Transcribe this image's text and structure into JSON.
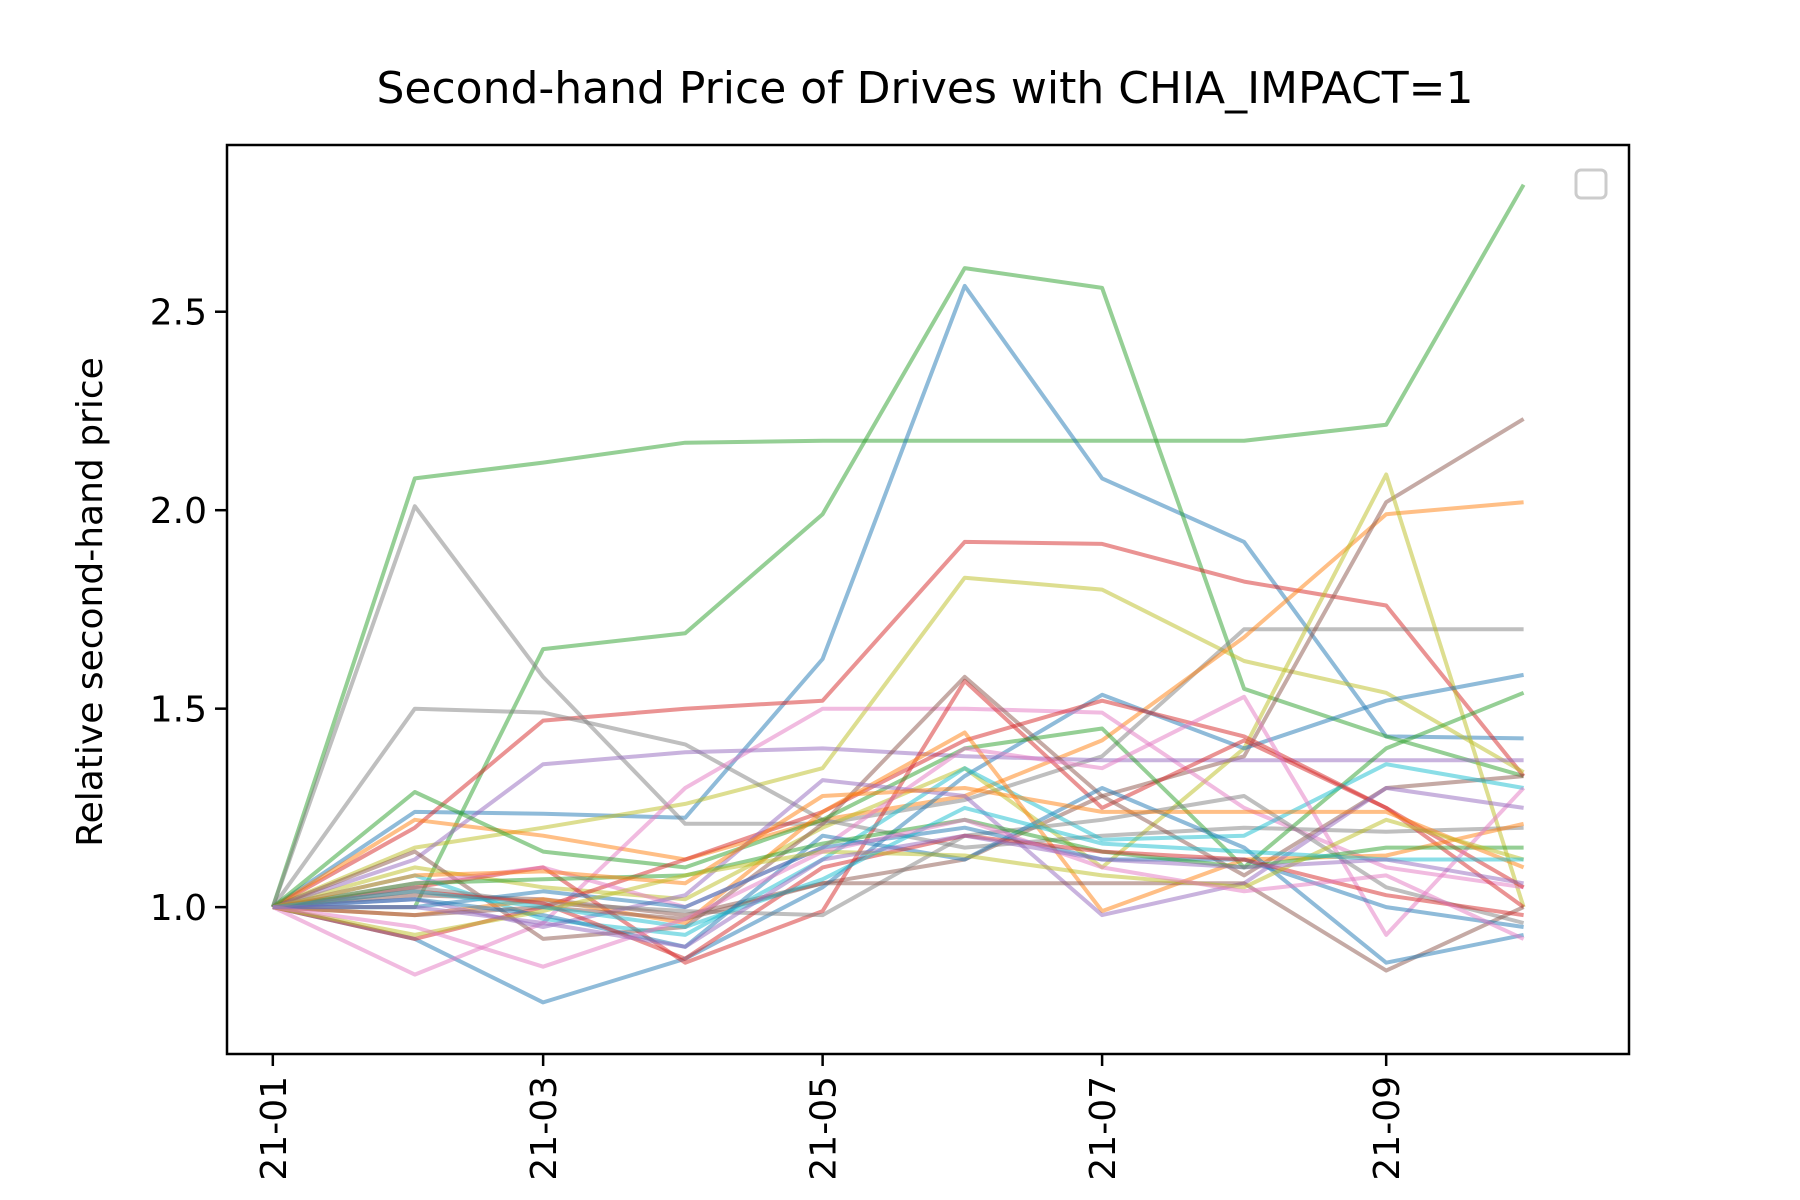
{
  "chart_data": {
    "type": "line",
    "title": "Second-hand Price of Drives with CHIA_IMPACT=1",
    "xlabel": "",
    "ylabel": "Relative second-hand price",
    "x": [
      "2021-01",
      "2021-02",
      "2021-03",
      "2021-04",
      "2021-05",
      "2021-06",
      "2021-07",
      "2021-08",
      "2021-09",
      "2021-10"
    ],
    "x_tick_labels": [
      {
        "x": "2021-01",
        "label": "21-01"
      },
      {
        "x": "2021-03",
        "label": "21-03"
      },
      {
        "x": "2021-05",
        "label": "21-05"
      },
      {
        "x": "2021-07",
        "label": "21-07"
      },
      {
        "x": "2021-09",
        "label": "21-09"
      }
    ],
    "y_ticks": [
      1.0,
      1.5,
      2.0,
      2.5
    ],
    "y_tick_labels": [
      "1.0",
      "1.5",
      "2.0",
      "2.5"
    ],
    "ylim": [
      0.63,
      2.92
    ],
    "xlim": [
      "2020-12-22",
      "2021-10-24"
    ],
    "grid": false,
    "legend": {
      "placement": "top-right",
      "entries": []
    },
    "line_opacity": 0.5,
    "series": [
      {
        "color": "#2ca02c",
        "values": [
          1.0,
          2.08,
          2.12,
          2.17,
          2.175,
          2.175,
          2.175,
          2.175,
          2.215,
          2.82
        ]
      },
      {
        "color": "#1f77b4",
        "values": [
          1.0,
          1.24,
          1.235,
          1.225,
          1.625,
          2.565,
          2.08,
          1.92,
          1.43,
          1.425
        ]
      },
      {
        "color": "#2ca02c",
        "values": [
          1.0,
          1.0,
          1.65,
          1.69,
          1.99,
          2.61,
          2.56,
          1.55,
          1.43,
          1.33
        ]
      },
      {
        "color": "#d62728",
        "values": [
          1.0,
          1.2,
          1.47,
          1.5,
          1.52,
          1.92,
          1.915,
          1.82,
          1.76,
          1.33
        ]
      },
      {
        "color": "#bcbd22",
        "values": [
          1.0,
          1.15,
          1.2,
          1.26,
          1.35,
          1.83,
          1.8,
          1.62,
          1.54,
          1.34
        ]
      },
      {
        "color": "#7f7f7f",
        "values": [
          1.0,
          2.01,
          1.58,
          1.21,
          1.21,
          1.27,
          1.38,
          1.7,
          1.7,
          1.7
        ]
      },
      {
        "color": "#ff7f0e",
        "values": [
          1.0,
          1.22,
          1.18,
          1.12,
          1.22,
          1.28,
          1.42,
          1.68,
          1.99,
          2.02
        ]
      },
      {
        "color": "#8c564b",
        "values": [
          1.0,
          1.03,
          1.02,
          0.98,
          1.06,
          1.12,
          1.28,
          1.38,
          2.02,
          2.23
        ]
      },
      {
        "color": "#bcbd22",
        "values": [
          1.0,
          1.1,
          1.05,
          1.02,
          1.2,
          1.35,
          1.1,
          1.4,
          2.09,
          1.0
        ]
      },
      {
        "color": "#7f7f7f",
        "values": [
          1.0,
          1.5,
          1.49,
          1.41,
          1.22,
          1.15,
          1.18,
          1.2,
          1.19,
          1.2
        ]
      },
      {
        "color": "#1f77b4",
        "values": [
          1.0,
          0.92,
          0.76,
          0.87,
          1.05,
          1.33,
          1.535,
          1.4,
          1.52,
          1.585
        ]
      },
      {
        "color": "#e377c2",
        "values": [
          1.0,
          0.83,
          0.96,
          1.3,
          1.5,
          1.5,
          1.49,
          1.25,
          1.1,
          1.05
        ]
      },
      {
        "color": "#9467bd",
        "values": [
          1.0,
          1.12,
          1.36,
          1.39,
          1.4,
          1.38,
          1.37,
          1.37,
          1.37,
          1.37
        ]
      },
      {
        "color": "#d62728",
        "values": [
          1.0,
          1.05,
          1.1,
          0.86,
          0.99,
          1.57,
          1.25,
          1.42,
          1.25,
          1.05
        ]
      },
      {
        "color": "#8c564b",
        "values": [
          1.0,
          1.14,
          0.92,
          0.95,
          1.21,
          1.58,
          1.28,
          1.08,
          1.3,
          1.33
        ]
      },
      {
        "color": "#2ca02c",
        "values": [
          1.0,
          1.29,
          1.14,
          1.1,
          1.22,
          1.4,
          1.45,
          1.1,
          1.4,
          1.54
        ]
      },
      {
        "color": "#17becf",
        "values": [
          1.0,
          1.08,
          0.97,
          0.93,
          1.12,
          1.35,
          1.17,
          1.18,
          1.36,
          1.3
        ]
      },
      {
        "color": "#d62728",
        "values": [
          1.0,
          0.92,
          1.0,
          1.12,
          1.24,
          1.42,
          1.52,
          1.43,
          1.25,
          1.0
        ]
      },
      {
        "color": "#ff7f0e",
        "values": [
          1.0,
          0.98,
          1.02,
          0.96,
          1.24,
          1.44,
          0.99,
          1.12,
          1.13,
          1.21
        ]
      },
      {
        "color": "#e377c2",
        "values": [
          1.0,
          1.06,
          1.1,
          1.0,
          1.15,
          1.4,
          1.35,
          1.53,
          0.93,
          1.3
        ]
      },
      {
        "color": "#9467bd",
        "values": [
          1.0,
          1.02,
          0.95,
          1.03,
          1.32,
          1.28,
          0.98,
          1.06,
          1.3,
          1.25
        ]
      },
      {
        "color": "#7f7f7f",
        "values": [
          1.0,
          1.05,
          1.01,
          0.99,
          0.98,
          1.18,
          1.22,
          1.28,
          1.05,
          0.96
        ]
      },
      {
        "color": "#8c564b",
        "values": [
          1.0,
          0.98,
          1.0,
          0.97,
          1.06,
          1.06,
          1.06,
          1.06,
          0.84,
          1.0
        ]
      },
      {
        "color": "#1f77b4",
        "values": [
          1.0,
          1.0,
          1.04,
          1.0,
          1.15,
          1.2,
          1.12,
          1.12,
          1.0,
          0.95
        ]
      },
      {
        "color": "#1f77b4",
        "values": [
          1.0,
          1.02,
          0.98,
          0.9,
          1.18,
          1.12,
          1.3,
          1.15,
          0.86,
          0.93
        ]
      },
      {
        "color": "#2ca02c",
        "values": [
          1.0,
          1.06,
          1.07,
          1.08,
          1.16,
          1.22,
          1.14,
          1.1,
          1.15,
          1.15
        ]
      },
      {
        "color": "#d62728",
        "values": [
          1.0,
          1.04,
          1.01,
          0.87,
          1.1,
          1.18,
          1.14,
          1.12,
          1.03,
          0.98
        ]
      },
      {
        "color": "#ff7f0e",
        "values": [
          1.0,
          1.08,
          1.09,
          1.06,
          1.28,
          1.3,
          1.24,
          1.24,
          1.24,
          1.1
        ]
      },
      {
        "color": "#bcbd22",
        "values": [
          1.0,
          0.93,
          0.99,
          1.08,
          1.14,
          1.13,
          1.08,
          1.05,
          1.22,
          1.12
        ]
      },
      {
        "color": "#17becf",
        "values": [
          1.0,
          1.04,
          1.0,
          0.95,
          1.07,
          1.25,
          1.16,
          1.14,
          1.12,
          1.12
        ]
      },
      {
        "color": "#e377c2",
        "values": [
          1.0,
          0.95,
          0.85,
          0.97,
          1.14,
          1.22,
          1.1,
          1.04,
          1.08,
          0.92
        ]
      },
      {
        "color": "#9467bd",
        "values": [
          1.0,
          1.0,
          0.96,
          0.9,
          1.12,
          1.18,
          1.12,
          1.1,
          1.12,
          1.06
        ]
      }
    ]
  }
}
